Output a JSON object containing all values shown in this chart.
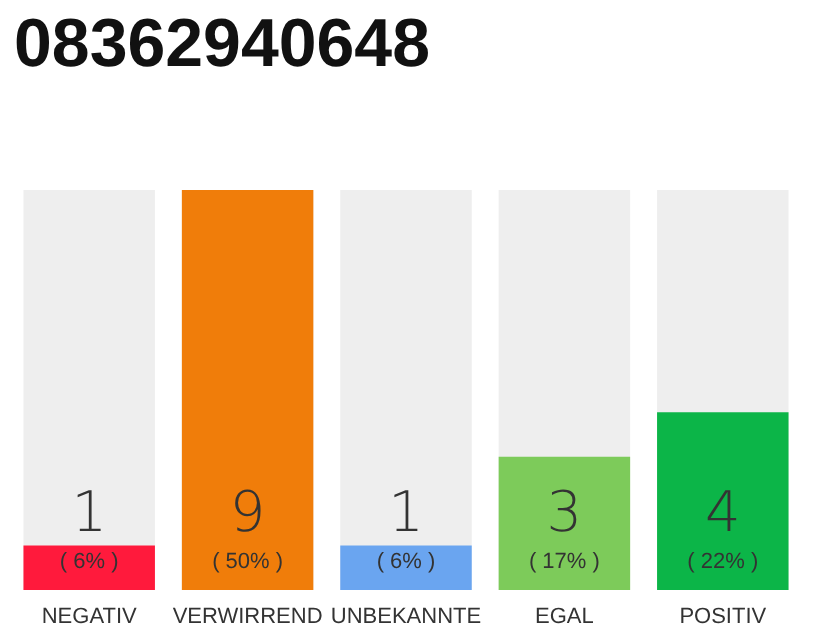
{
  "chart_data": {
    "type": "bar",
    "title": "08362940648",
    "categories": [
      "NEGATIV",
      "VERWIRREND",
      "UNBEKANNTE",
      "EGAL",
      "POSITIV"
    ],
    "values": [
      1,
      9,
      1,
      3,
      4
    ],
    "colors": [
      "#ff1a3c",
      "#f07d0a",
      "#6aa5f0",
      "#7dcb5a",
      "#0cb548"
    ],
    "data_labels": true,
    "annotations": [
      "( 6% )",
      "( 50% )",
      "( 6% )",
      "( 17% )",
      "( 22% )"
    ],
    "tick_labels": "x"
  }
}
